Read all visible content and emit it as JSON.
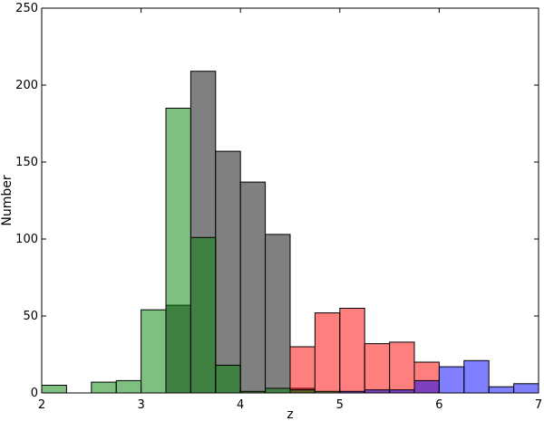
{
  "chart_data": {
    "type": "bar",
    "title": "",
    "xlabel": "z",
    "ylabel": "Number",
    "xlim": [
      2,
      7
    ],
    "ylim": [
      0,
      250
    ],
    "xticks": [
      "2",
      "3",
      "4",
      "5",
      "6",
      "7"
    ],
    "yticks": [
      "0",
      "50",
      "100",
      "150",
      "200",
      "250"
    ],
    "bin_width": 0.25,
    "grid": false,
    "legend": "none",
    "series": [
      {
        "color": "#808080",
        "opacity": 1.0,
        "bins": [
          [
            3.25,
            57
          ],
          [
            3.5,
            209
          ],
          [
            3.75,
            157
          ],
          [
            4.0,
            137
          ],
          [
            4.25,
            103
          ],
          [
            4.5,
            3
          ]
        ]
      },
      {
        "color": "#ff0000",
        "opacity": 0.5,
        "bins": [
          [
            4.5,
            30
          ],
          [
            4.75,
            52
          ],
          [
            5.0,
            55
          ],
          [
            5.25,
            32
          ],
          [
            5.5,
            33
          ],
          [
            5.75,
            20
          ]
        ]
      },
      {
        "color": "#0000ff",
        "opacity": 0.5,
        "bins": [
          [
            5.0,
            1
          ],
          [
            5.25,
            2
          ],
          [
            5.5,
            2
          ],
          [
            5.75,
            8
          ],
          [
            6.0,
            17
          ],
          [
            6.25,
            21
          ],
          [
            6.5,
            4
          ],
          [
            6.75,
            6
          ]
        ]
      },
      {
        "color": "#008000",
        "opacity": 0.5,
        "bins": [
          [
            2.0,
            5
          ],
          [
            2.5,
            7
          ],
          [
            2.75,
            8
          ],
          [
            3.0,
            54
          ],
          [
            3.25,
            185
          ],
          [
            3.5,
            101
          ],
          [
            3.75,
            18
          ],
          [
            4.0,
            1
          ],
          [
            4.25,
            3
          ],
          [
            4.5,
            2
          ],
          [
            4.75,
            1
          ]
        ]
      }
    ]
  }
}
